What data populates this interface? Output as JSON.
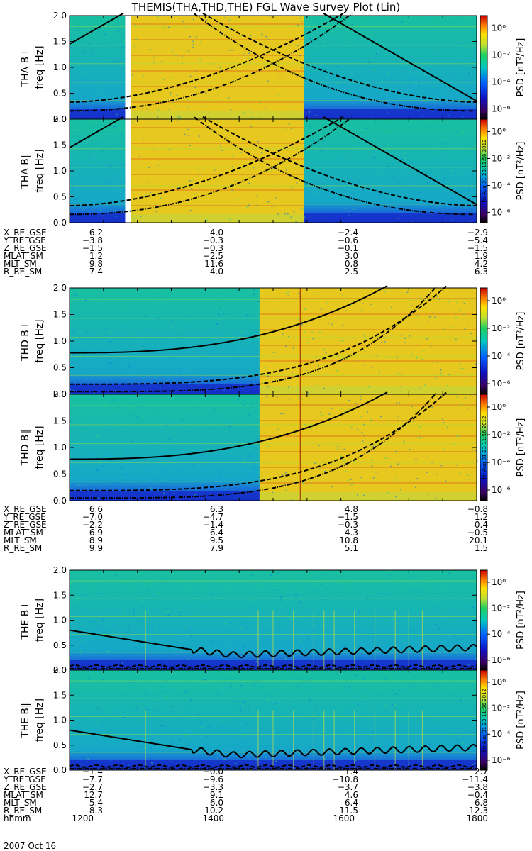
{
  "title": "THEMIS(THA,THD,THE) FGL Wave Survey Plot (Lin)",
  "date_label": "2007 Oct 16",
  "stamp": "Fri Aug 31 23:11:56 2012",
  "colors": {
    "background_low": "#1a3cd8",
    "background_mid": "#17c0a0",
    "active": "#e8d020",
    "gap": "#ffffff",
    "curve": "#000000"
  },
  "chart_data": [
    {
      "type": "heatmap",
      "probe": "THA",
      "groups": [
        {
          "panels": [
            {
              "label": "THA B⊥",
              "ylabel": "freq [Hz]"
            },
            {
              "label": "THA B∥",
              "ylabel": "freq [Hz]"
            }
          ],
          "y_ticks": [
            "0.0",
            "0.5",
            "1.0",
            "1.5",
            "2.0"
          ],
          "ylim": [
            0,
            2.0
          ],
          "colorbar": {
            "label": "PSD [nT²/Hz]",
            "ticks": [
              "10⁰",
              "10⁻²",
              "10⁻⁴",
              "10⁻⁶"
            ]
          },
          "data_gap": [
            1282,
            1290
          ],
          "enhanced_interval": [
            1290,
            1545
          ],
          "ephemeris": [
            {
              "name": "X_RE_GSE",
              "values": [
                "6.2",
                "4.0",
                "−2.4",
                "−2.9"
              ]
            },
            {
              "name": "Y_RE_GSE",
              "values": [
                "−3.8",
                "−0.3",
                "−0.6",
                "−5.4"
              ]
            },
            {
              "name": "Z_RE_GSE",
              "values": [
                "−1.5",
                "−0.3",
                "−0.1",
                "−1.5"
              ]
            },
            {
              "name": "MLAT_SM",
              "values": [
                "1.2",
                "−2.5",
                "3.0",
                "1.9"
              ]
            },
            {
              "name": "MLT_SM",
              "values": [
                "9.8",
                "11.6",
                "0.8",
                "4.2"
              ]
            },
            {
              "name": "R_RE_SM",
              "values": [
                "7.4",
                "4.0",
                "2.5",
                "6.3"
              ]
            }
          ]
        },
        {
          "panels": [
            {
              "label": "THD B⊥",
              "ylabel": "freq [Hz]"
            },
            {
              "label": "THD B∥",
              "ylabel": "freq [Hz]"
            }
          ],
          "y_ticks": [
            "0.0",
            "0.5",
            "1.0",
            "1.5",
            "2.0"
          ],
          "ylim": [
            0,
            2.0
          ],
          "colorbar": {
            "label": "PSD [nT²/Hz]",
            "ticks": [
              "10⁰",
              "10⁻²",
              "10⁻⁴",
              "10⁻⁶"
            ]
          },
          "enhanced_interval": [
            1480,
            1800
          ],
          "ephemeris": [
            {
              "name": "X_RE_GSE",
              "values": [
                "6.6",
                "6.3",
                "4.8",
                "−0.8"
              ]
            },
            {
              "name": "Y_RE_GSE",
              "values": [
                "−7.0",
                "−4.7",
                "−1.5",
                "1.2"
              ]
            },
            {
              "name": "Z_RE_GSE",
              "values": [
                "−2.2",
                "−1.4",
                "−0.3",
                "0.4"
              ]
            },
            {
              "name": "MLAT_SM",
              "values": [
                "6.9",
                "6.4",
                "4.3",
                "−0.5"
              ]
            },
            {
              "name": "MLT_SM",
              "values": [
                "8.9",
                "9.5",
                "10.8",
                "20.1"
              ]
            },
            {
              "name": "R_RE_SM",
              "values": [
                "9.9",
                "7.9",
                "5.1",
                "1.5"
              ]
            }
          ]
        },
        {
          "panels": [
            {
              "label": "THE B⊥",
              "ylabel": "freq [Hz]"
            },
            {
              "label": "THE B∥",
              "ylabel": "freq [Hz]"
            }
          ],
          "y_ticks": [
            "0.0",
            "0.5",
            "1.0",
            "1.5",
            "2.0"
          ],
          "ylim": [
            0,
            2.0
          ],
          "colorbar": {
            "label": "PSD [nT²/Hz]",
            "ticks": [
              "10⁰",
              "10⁻²",
              "10⁻⁴",
              "10⁻⁶"
            ]
          },
          "ephemeris": [
            {
              "name": "X_RE_GSE",
              "values": [
                "−1.4",
                "−0.0",
                "1.4",
                "2.7"
              ]
            },
            {
              "name": "Y_RE_GSE",
              "values": [
                "−7.7",
                "−9.6",
                "−10.8",
                "−11.4"
              ]
            },
            {
              "name": "Z_RE_GSE",
              "values": [
                "−2.7",
                "−3.3",
                "−3.7",
                "−3.8"
              ]
            },
            {
              "name": "MLAT_SM",
              "values": [
                "12.7",
                "9.1",
                "4.6",
                "−0.4"
              ]
            },
            {
              "name": "MLT_SM",
              "values": [
                "5.4",
                "6.0",
                "6.4",
                "6.8"
              ]
            },
            {
              "name": "R_RE_SM",
              "values": [
                "8.3",
                "10.2",
                "11.5",
                "12.3"
              ]
            }
          ],
          "time_axis": {
            "name": "hhmm",
            "values": [
              "1200",
              "1400",
              "1600",
              "1800"
            ]
          }
        }
      ],
      "xlim": [
        "1200",
        "1800"
      ]
    }
  ]
}
